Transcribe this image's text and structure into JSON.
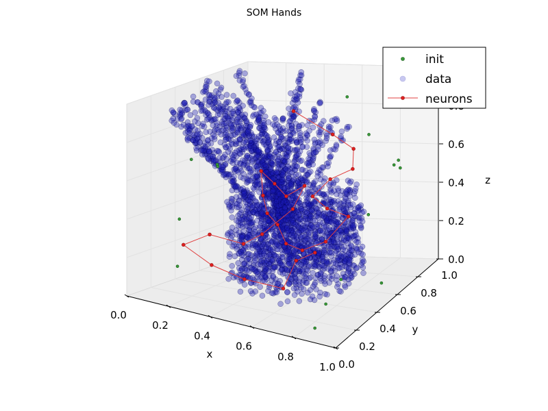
{
  "chart_data": {
    "type": "scatter",
    "title": "SOM Hands",
    "xlabel": "x",
    "ylabel": "y",
    "zlabel": "z",
    "xlim": [
      0.0,
      1.0
    ],
    "ylim": [
      0.0,
      1.0
    ],
    "zlim": [
      0.0,
      1.0
    ],
    "x_ticks": [
      "0.0",
      "0.2",
      "0.4",
      "0.6",
      "0.8",
      "1.0"
    ],
    "y_ticks": [
      "0.0",
      "0.2",
      "0.4",
      "0.6",
      "0.8",
      "1.0"
    ],
    "z_ticks": [
      "0.0",
      "0.2",
      "0.4",
      "0.6",
      "0.8",
      "1.0"
    ],
    "grid": true,
    "legend_position": "top-right",
    "colors": {
      "init": "#3a9a3a",
      "data": "#0000c8",
      "neurons": "#e02020"
    },
    "series": [
      {
        "name": "init",
        "values": [
          {
            "x": 0.55,
            "y": 0.95,
            "z": 0.85
          },
          {
            "x": 0.05,
            "y": 0.45,
            "z": 0.62
          },
          {
            "x": 0.12,
            "y": 0.55,
            "z": 0.58
          },
          {
            "x": 0.14,
            "y": 0.52,
            "z": 0.58
          },
          {
            "x": 0.72,
            "y": 0.85,
            "z": 0.7
          },
          {
            "x": 0.85,
            "y": 0.85,
            "z": 0.55
          },
          {
            "x": 0.9,
            "y": 0.8,
            "z": 0.6
          },
          {
            "x": 0.92,
            "y": 0.78,
            "z": 0.57
          },
          {
            "x": 0.8,
            "y": 0.7,
            "z": 0.35
          },
          {
            "x": 0.08,
            "y": 0.3,
            "z": 0.35
          },
          {
            "x": 0.1,
            "y": 0.25,
            "z": 0.12
          },
          {
            "x": 0.78,
            "y": 0.48,
            "z": 0.1
          },
          {
            "x": 0.92,
            "y": 0.6,
            "z": 0.05
          },
          {
            "x": 0.8,
            "y": 0.3,
            "z": 0.05
          },
          {
            "x": 0.85,
            "y": 0.1,
            "z": 0.02
          }
        ]
      },
      {
        "name": "data",
        "values": []
      },
      {
        "name": "neurons",
        "values": [
          {
            "x": 0.3,
            "y": 0.9,
            "z": 0.78
          },
          {
            "x": 0.55,
            "y": 0.82,
            "z": 0.7
          },
          {
            "x": 0.68,
            "y": 0.78,
            "z": 0.65
          },
          {
            "x": 0.72,
            "y": 0.7,
            "z": 0.58
          },
          {
            "x": 0.65,
            "y": 0.62,
            "z": 0.55
          },
          {
            "x": 0.6,
            "y": 0.55,
            "z": 0.48
          },
          {
            "x": 0.7,
            "y": 0.5,
            "z": 0.45
          },
          {
            "x": 0.78,
            "y": 0.55,
            "z": 0.4
          },
          {
            "x": 0.72,
            "y": 0.45,
            "z": 0.3
          },
          {
            "x": 0.62,
            "y": 0.42,
            "z": 0.25
          },
          {
            "x": 0.55,
            "y": 0.4,
            "z": 0.28
          },
          {
            "x": 0.48,
            "y": 0.45,
            "z": 0.35
          },
          {
            "x": 0.4,
            "y": 0.5,
            "z": 0.38
          },
          {
            "x": 0.35,
            "y": 0.55,
            "z": 0.45
          },
          {
            "x": 0.3,
            "y": 0.62,
            "z": 0.55
          },
          {
            "x": 0.38,
            "y": 0.6,
            "z": 0.5
          },
          {
            "x": 0.45,
            "y": 0.58,
            "z": 0.45
          },
          {
            "x": 0.52,
            "y": 0.62,
            "z": 0.5
          },
          {
            "x": 0.5,
            "y": 0.55,
            "z": 0.4
          },
          {
            "x": 0.42,
            "y": 0.42,
            "z": 0.3
          },
          {
            "x": 0.35,
            "y": 0.38,
            "z": 0.25
          },
          {
            "x": 0.2,
            "y": 0.35,
            "z": 0.28
          },
          {
            "x": 0.1,
            "y": 0.3,
            "z": 0.22
          },
          {
            "x": 0.25,
            "y": 0.28,
            "z": 0.15
          },
          {
            "x": 0.4,
            "y": 0.3,
            "z": 0.1
          },
          {
            "x": 0.58,
            "y": 0.32,
            "z": 0.08
          },
          {
            "x": 0.6,
            "y": 0.4,
            "z": 0.2
          },
          {
            "x": 0.65,
            "y": 0.48,
            "z": 0.22
          }
        ]
      }
    ]
  }
}
